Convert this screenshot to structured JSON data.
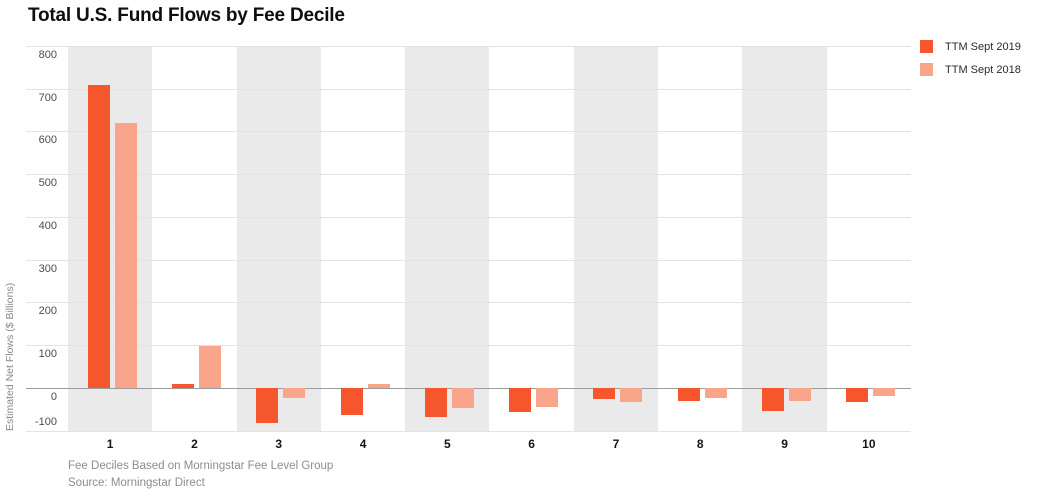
{
  "title": "Total U.S. Fund Flows by Fee Decile",
  "legend": [
    {
      "label": "TTM Sept 2019",
      "color": "#f5562b"
    },
    {
      "label": "TTM Sept 2018",
      "color": "#f9a58c"
    }
  ],
  "chart_data": {
    "type": "bar",
    "categories": [
      "1",
      "2",
      "3",
      "4",
      "5",
      "6",
      "7",
      "8",
      "9",
      "10"
    ],
    "series": [
      {
        "name": "TTM Sept 2019",
        "color": "#f5562b",
        "values": [
          710,
          8,
          -82,
          -63,
          -68,
          -56,
          -26,
          -30,
          -54,
          -34
        ]
      },
      {
        "name": "TTM Sept 2018",
        "color": "#f9a58c",
        "values": [
          620,
          98,
          -23,
          9,
          -47,
          -44,
          -34,
          -23,
          -32,
          -19
        ]
      }
    ],
    "title": "Total U.S. Fund Flows by Fee Decile",
    "xlabel": "",
    "ylabel": "Estimated Net Flows ($ Billions)",
    "ylim": [
      -100,
      800
    ],
    "ytick_step": 100,
    "grid": true,
    "legend_position": "top-right",
    "band_shading": "odd-deciles-shaded",
    "band_color": "#eaeaea",
    "zero_line_color": "#9c9c9c"
  },
  "footer": {
    "line1": "Fee Deciles Based on Morningstar Fee Level Group",
    "line2": "Source: Morningstar Direct"
  }
}
